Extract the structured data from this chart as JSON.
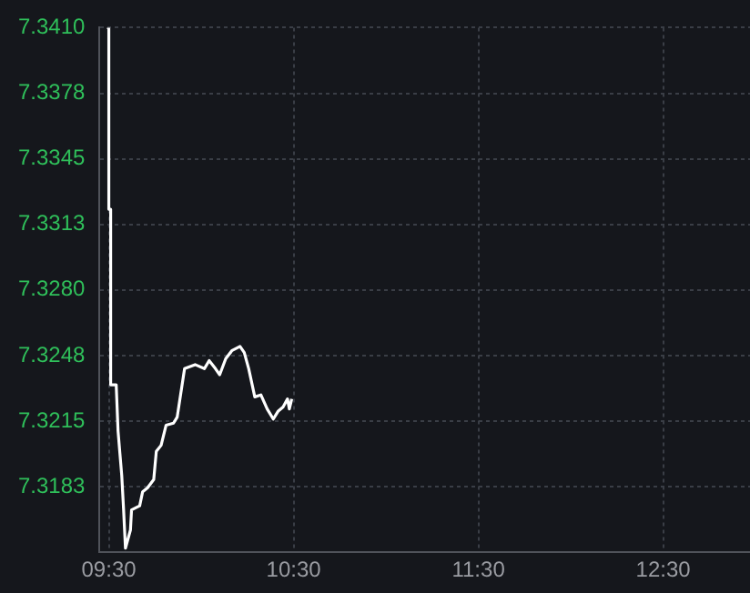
{
  "chart_data": {
    "type": "line",
    "x": [
      9.49,
      9.5,
      9.5,
      9.51,
      9.51,
      9.54,
      9.55,
      9.57,
      9.58,
      9.59,
      9.617,
      9.623,
      9.667,
      9.683,
      9.71,
      9.743,
      9.757,
      9.783,
      9.81,
      9.85,
      9.87,
      9.91,
      9.967,
      10.017,
      10.043,
      10.077,
      10.1,
      10.133,
      10.167,
      10.21,
      10.233,
      10.257,
      10.29,
      10.323,
      10.357,
      10.39,
      10.417,
      10.443,
      10.467,
      10.477,
      10.49
    ],
    "series": [
      {
        "color": "#ffffff",
        "values": [
          7.341,
          7.341,
          7.332,
          7.332,
          7.3233,
          7.3233,
          7.321,
          7.3188,
          7.3171,
          7.3152,
          7.3161,
          7.3171,
          7.3173,
          7.318,
          7.3182,
          7.3186,
          7.32,
          7.3203,
          7.3213,
          7.3214,
          7.3217,
          7.3241,
          7.3243,
          7.3241,
          7.3245,
          7.3241,
          7.3238,
          7.3246,
          7.325,
          7.3252,
          7.3249,
          7.3241,
          7.3227,
          7.3228,
          7.3221,
          7.3216,
          7.322,
          7.3222,
          7.3226,
          7.3221,
          7.3226
        ]
      }
    ],
    "xlim": [
      9.45,
      12.97
    ],
    "xticks": [
      {
        "value": 9.5,
        "label": "09:30"
      },
      {
        "value": 10.5,
        "label": "10:30"
      },
      {
        "value": 11.5,
        "label": "11:30"
      },
      {
        "value": 12.5,
        "label": "12:30"
      }
    ],
    "ylim": [
      7.315,
      7.341
    ],
    "yticks": [
      {
        "value": 7.31825,
        "label": "7.3183"
      },
      {
        "value": 7.3215,
        "label": "7.3215"
      },
      {
        "value": 7.32475,
        "label": "7.3248"
      },
      {
        "value": 7.328,
        "label": "7.3280"
      },
      {
        "value": 7.33125,
        "label": "7.3313"
      },
      {
        "value": 7.3345,
        "label": "7.3345"
      },
      {
        "value": 7.33775,
        "label": "7.3378"
      },
      {
        "value": 7.341,
        "label": "7.3410"
      }
    ],
    "grid": true,
    "legend": false,
    "marker": "none",
    "line_style": "solid"
  }
}
